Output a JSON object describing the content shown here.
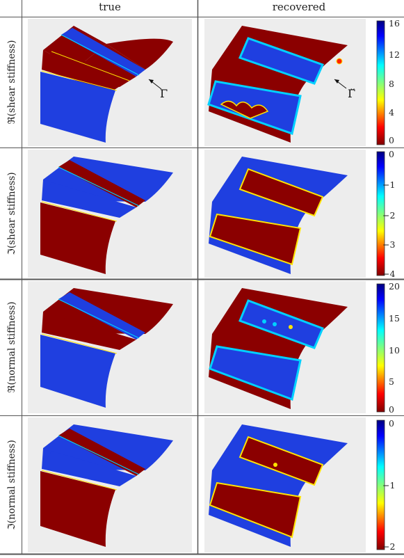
{
  "columns": {
    "true_label": "true",
    "recovered_label": "recovered"
  },
  "rows": [
    {
      "label": "ℜ(shear stiffness)",
      "ticks": [
        "16",
        "12",
        "8",
        "4",
        "0"
      ]
    },
    {
      "label": "ℑ(shear stiffness)",
      "ticks": [
        "0",
        "−1",
        "−2",
        "−3",
        "−4"
      ]
    },
    {
      "label": "ℜ(normal stiffness)",
      "ticks": [
        "20",
        "15",
        "10",
        "5",
        "0"
      ]
    },
    {
      "label": "ℑ(normal stiffness)",
      "ticks": [
        "0",
        "−1",
        "−2"
      ]
    }
  ],
  "annotations": {
    "gamma": "Γ",
    "gamma_recovered": "Γ̆"
  },
  "colors": {
    "red": "#8b0000",
    "blue": "#1f3fe0",
    "cyan": "#00d0ff",
    "yellow": "#ffe400",
    "panel_bg": "#ededed",
    "rule": "#555555"
  }
}
